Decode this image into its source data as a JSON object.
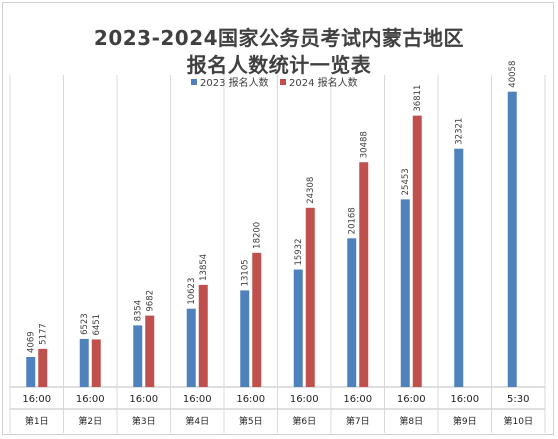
{
  "chart_data": {
    "type": "bar",
    "title": "2023-2024国家公务员考试内蒙古地区",
    "subtitle": "报名人数统计一览表",
    "categories": [
      {
        "time": "16:00",
        "day": "第1日"
      },
      {
        "time": "16:00",
        "day": "第2日"
      },
      {
        "time": "16:00",
        "day": "第3日"
      },
      {
        "time": "16:00",
        "day": "第4日"
      },
      {
        "time": "16:00",
        "day": "第5日"
      },
      {
        "time": "16:00",
        "day": "第6日"
      },
      {
        "time": "16:00",
        "day": "第7日"
      },
      {
        "time": "16:00",
        "day": "第8日"
      },
      {
        "time": "16:00",
        "day": "第9日"
      },
      {
        "time": "5:30",
        "day": "第10日"
      }
    ],
    "series": [
      {
        "name": "2023 报名人数",
        "color": "#4f81bd",
        "values": [
          4069,
          6523,
          8354,
          10623,
          13105,
          15932,
          20168,
          25453,
          32321,
          40058
        ]
      },
      {
        "name": "2024 报名人数",
        "color": "#c0504d",
        "values": [
          5177,
          6451,
          9682,
          13854,
          18200,
          24308,
          30488,
          36811,
          null,
          null
        ]
      }
    ],
    "ylim": [
      0,
      43000
    ],
    "grid": false,
    "legend": "top-center"
  }
}
